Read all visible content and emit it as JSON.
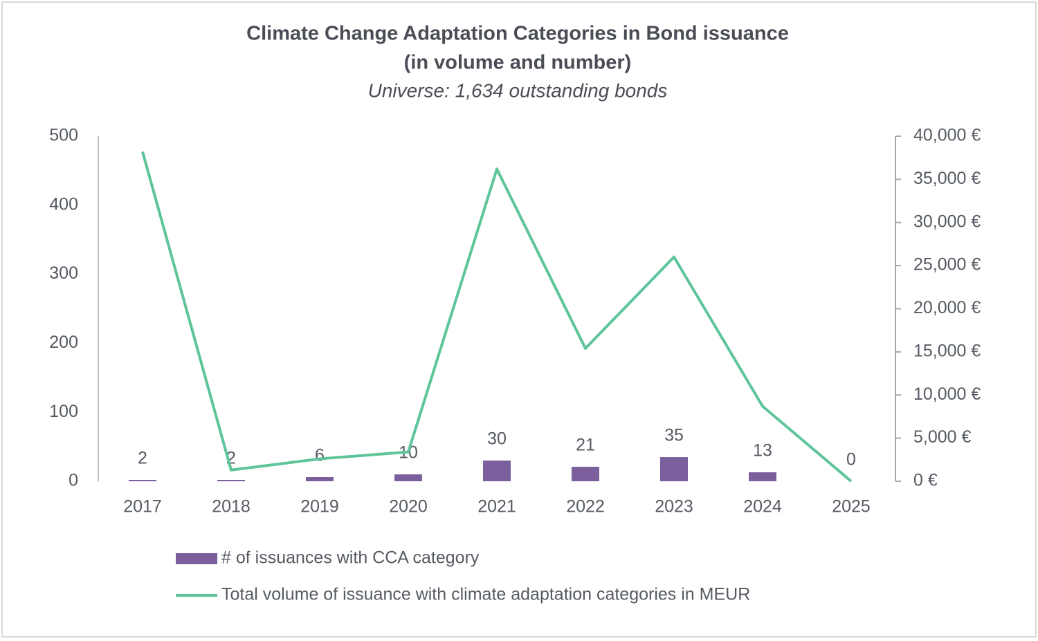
{
  "chart_data": {
    "type": "combo",
    "title": [
      "Climate Change Adaptation Categories in Bond issuance",
      "(in volume and number)"
    ],
    "subtitle": "Universe: 1,634 outstanding bonds",
    "categories": [
      "2017",
      "2018",
      "2019",
      "2020",
      "2021",
      "2022",
      "2023",
      "2024",
      "2025"
    ],
    "series": [
      {
        "name": "# of issuances with CCA category",
        "type": "bar",
        "color": "#7b5f9d",
        "axis": "y",
        "values": [
          2,
          2,
          6,
          10,
          30,
          21,
          35,
          13,
          0
        ]
      },
      {
        "name": "Total volume of issuance with climate adaptation categories in MEUR",
        "type": "line",
        "color": "#5ec499",
        "axis": "y2",
        "values": [
          38200,
          1300,
          2600,
          3400,
          36200,
          15400,
          26000,
          8700,
          0
        ]
      }
    ],
    "ylim": [
      0,
      500
    ],
    "yticks": [
      0,
      100,
      200,
      300,
      400,
      500
    ],
    "y2lim": [
      0,
      40000
    ],
    "y2ticks": [
      {
        "value": 0,
        "label": "0 €"
      },
      {
        "value": 5000,
        "label": "5,000 €"
      },
      {
        "value": 10000,
        "label": "10,000 €"
      },
      {
        "value": 15000,
        "label": "15,000 €"
      },
      {
        "value": 20000,
        "label": "20,000 €"
      },
      {
        "value": 25000,
        "label": "25,000 €"
      },
      {
        "value": 30000,
        "label": "30,000 €"
      },
      {
        "value": 35000,
        "label": "35,000 €"
      },
      {
        "value": 40000,
        "label": "40,000 €"
      }
    ]
  }
}
